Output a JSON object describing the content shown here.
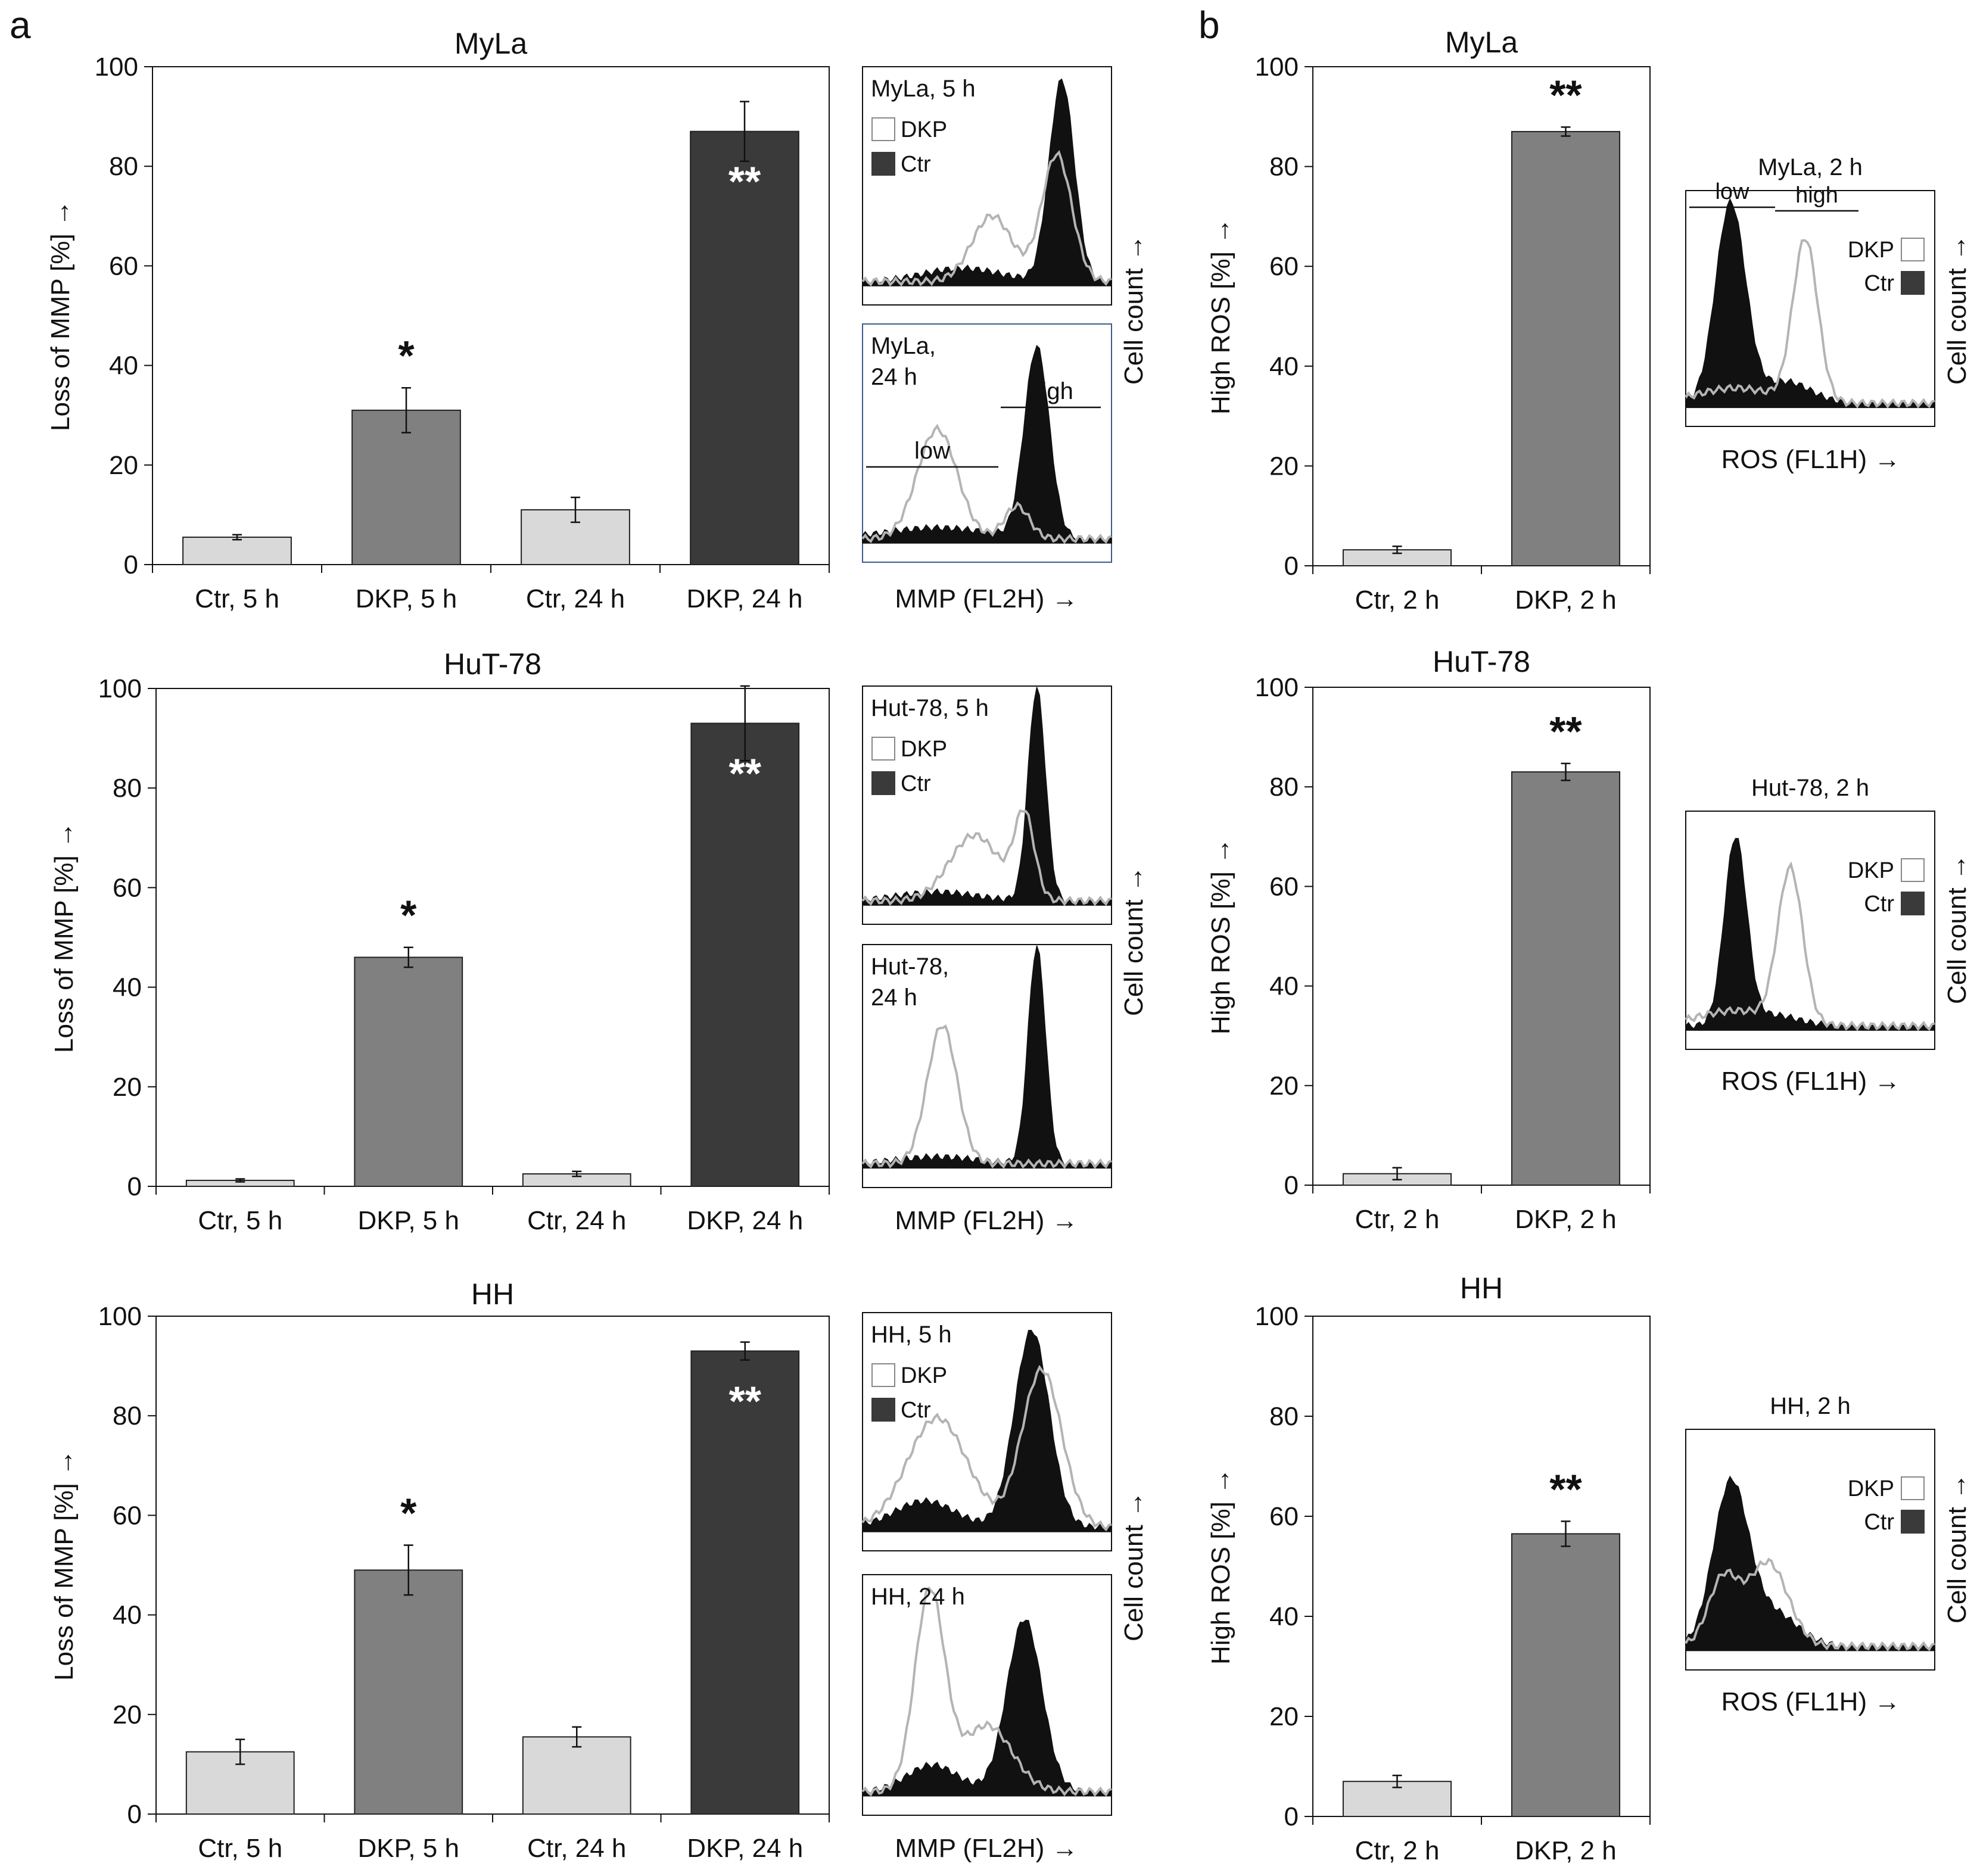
{
  "panels": {
    "a": "a",
    "b": "b"
  },
  "colors": {
    "ctr_bar": "#d9d9d9",
    "dkp5_bar": "#808080",
    "dkp24_bar": "#3a3a3a",
    "hist_ctr": "#111111",
    "hist_dkp": "#b4b4b4",
    "axis": "#111111"
  },
  "chart_data": [
    {
      "id": "mmp-myla",
      "type": "bar",
      "title": "MyLa",
      "ylabel": "Loss of MMP  [%]  →",
      "ylim": [
        0,
        100
      ],
      "yticks": [
        0,
        20,
        40,
        60,
        80,
        100
      ],
      "categories": [
        "Ctr, 5 h",
        "DKP, 5 h",
        "Ctr, 24 h",
        "DKP, 24 h"
      ],
      "values": [
        5.5,
        31,
        11,
        87
      ],
      "errors": [
        0.5,
        4.5,
        2.5,
        6
      ],
      "colors": [
        "#d9d9d9",
        "#808080",
        "#d9d9d9",
        "#3a3a3a"
      ],
      "significance": [
        "",
        "*",
        "",
        "**"
      ]
    },
    {
      "id": "mmp-hut78",
      "type": "bar",
      "title": "HuT-78",
      "ylabel": "Loss of MMP  [%]  →",
      "ylim": [
        0,
        100
      ],
      "yticks": [
        0,
        20,
        40,
        60,
        80,
        100
      ],
      "categories": [
        "Ctr, 5 h",
        "DKP, 5 h",
        "Ctr, 24 h",
        "DKP, 24 h"
      ],
      "values": [
        1.2,
        46,
        2.5,
        93
      ],
      "errors": [
        0.3,
        2,
        0.5,
        7.5
      ],
      "colors": [
        "#d9d9d9",
        "#808080",
        "#d9d9d9",
        "#3a3a3a"
      ],
      "significance": [
        "",
        "*",
        "",
        "**"
      ]
    },
    {
      "id": "mmp-hh",
      "type": "bar",
      "title": "HH",
      "ylabel": "Loss of MMP  [%]  →",
      "ylim": [
        0,
        100
      ],
      "yticks": [
        0,
        20,
        40,
        60,
        80,
        100
      ],
      "categories": [
        "Ctr, 5 h",
        "DKP, 5 h",
        "Ctr, 24 h",
        "DKP, 24 h"
      ],
      "values": [
        12.5,
        49,
        15.5,
        93
      ],
      "errors": [
        2.5,
        5,
        2,
        1.8
      ],
      "colors": [
        "#d9d9d9",
        "#808080",
        "#d9d9d9",
        "#3a3a3a"
      ],
      "significance": [
        "",
        "*",
        "",
        "**"
      ]
    },
    {
      "id": "ros-myla",
      "type": "bar",
      "title": "MyLa",
      "ylabel": "High ROS  [%]  →",
      "ylim": [
        0,
        100
      ],
      "yticks": [
        0,
        20,
        40,
        60,
        80,
        100
      ],
      "categories": [
        "Ctr, 2 h",
        "DKP, 2 h"
      ],
      "values": [
        3.2,
        87
      ],
      "errors": [
        0.7,
        0.9
      ],
      "colors": [
        "#d9d9d9",
        "#808080"
      ],
      "significance": [
        "",
        "**"
      ]
    },
    {
      "id": "ros-hut78",
      "type": "bar",
      "title": "HuT-78",
      "ylabel": "High ROS  [%]  →",
      "ylim": [
        0,
        100
      ],
      "yticks": [
        0,
        20,
        40,
        60,
        80,
        100
      ],
      "categories": [
        "Ctr, 2 h",
        "DKP, 2 h"
      ],
      "values": [
        2.3,
        83
      ],
      "errors": [
        1.2,
        1.7
      ],
      "colors": [
        "#d9d9d9",
        "#808080"
      ],
      "significance": [
        "",
        "**"
      ]
    },
    {
      "id": "ros-hh",
      "type": "bar",
      "title": "HH",
      "ylabel": "High ROS  [%]  →",
      "ylim": [
        0,
        100
      ],
      "yticks": [
        0,
        20,
        40,
        60,
        80,
        100
      ],
      "categories": [
        "Ctr, 2 h",
        "DKP, 2 h"
      ],
      "values": [
        7,
        56.5
      ],
      "errors": [
        1.2,
        2.5
      ],
      "colors": [
        "#d9d9d9",
        "#808080"
      ],
      "significance": [
        "",
        "**"
      ]
    }
  ],
  "histograms": {
    "mmp_xlabel": "MMP (FL2H)  →",
    "mmp_ylabel": "Cell count  →",
    "ros_xlabel": "ROS (FL1H)  →",
    "ros_ylabel": "Cell count  →",
    "legend_dkp": "DKP",
    "legend_ctr": "Ctr",
    "low": "low",
    "high": "high",
    "panels": [
      {
        "id": "h-myla-5",
        "label": [
          "MyLa, 5 h"
        ]
      },
      {
        "id": "h-myla-24",
        "label": [
          "MyLa,",
          "24 h"
        ]
      },
      {
        "id": "h-hut-5",
        "label": [
          "Hut-78, 5 h"
        ]
      },
      {
        "id": "h-hut-24",
        "label": [
          "Hut-78,",
          "24 h"
        ]
      },
      {
        "id": "h-hh-5",
        "label": [
          "HH, 5 h"
        ]
      },
      {
        "id": "h-hh-24",
        "label": [
          "HH, 24 h"
        ]
      },
      {
        "id": "r-myla",
        "label": [
          "MyLa, 2 h"
        ]
      },
      {
        "id": "r-hut",
        "label": [
          "Hut-78, 2 h"
        ]
      },
      {
        "id": "r-hh",
        "label": [
          "HH, 2 h"
        ]
      }
    ]
  }
}
